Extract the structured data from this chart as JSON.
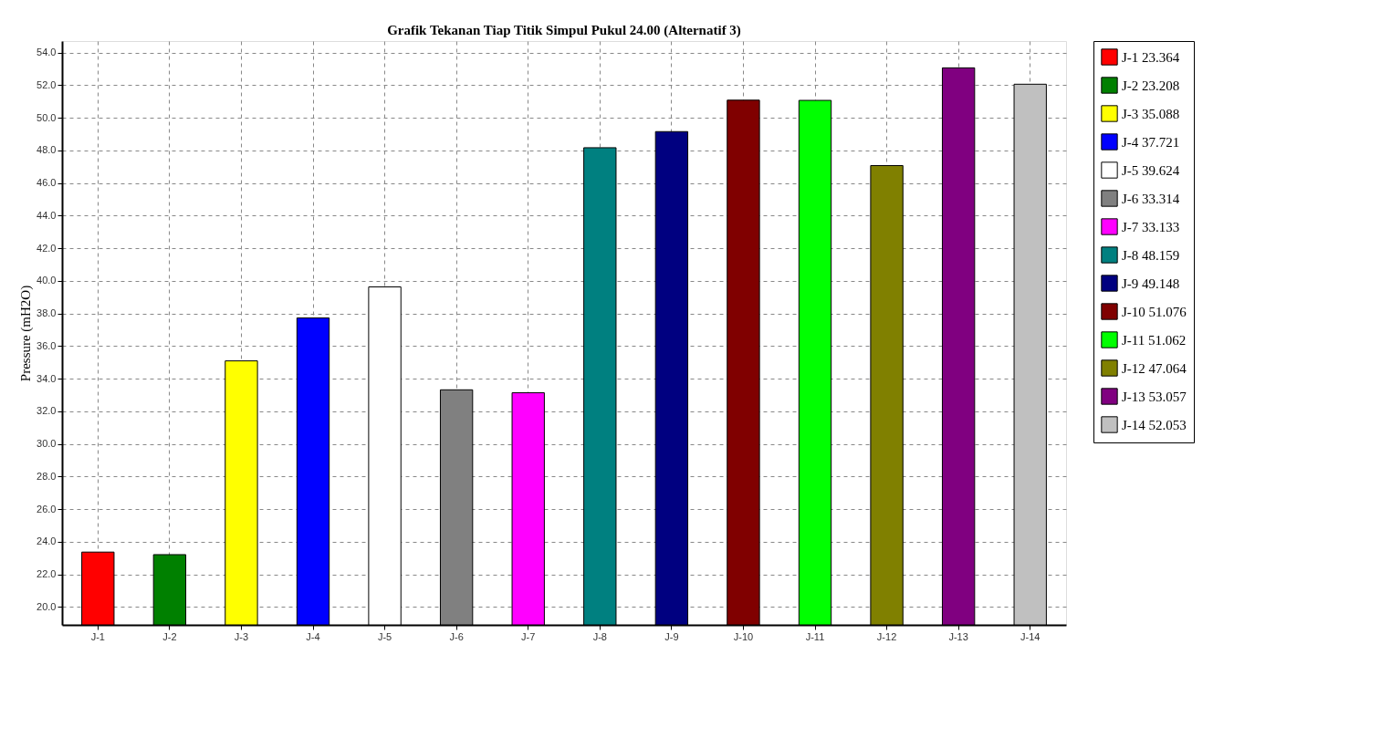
{
  "chart_data": {
    "type": "bar",
    "title": "Grafik Tekanan Tiap Titik Simpul Pukul 24.00 (Alternatif 3)",
    "ylabel": "Pressure (mH2O)",
    "categories": [
      "J-1",
      "J-2",
      "J-3",
      "J-4",
      "J-5",
      "J-6",
      "J-7",
      "J-8",
      "J-9",
      "J-10",
      "J-11",
      "J-12",
      "J-13",
      "J-14"
    ],
    "series": [
      {
        "name": "J-1 23.364",
        "color": "#ff0000",
        "values": [
          23.364,
          null,
          null,
          null,
          null,
          null,
          null,
          null,
          null,
          null,
          null,
          null,
          null,
          null
        ]
      },
      {
        "name": "J-2 23.208",
        "color": "#008000",
        "values": [
          null,
          23.208,
          null,
          null,
          null,
          null,
          null,
          null,
          null,
          null,
          null,
          null,
          null,
          null
        ]
      },
      {
        "name": "J-3 35.088",
        "color": "#ffff00",
        "values": [
          null,
          null,
          35.088,
          null,
          null,
          null,
          null,
          null,
          null,
          null,
          null,
          null,
          null,
          null
        ]
      },
      {
        "name": "J-4 37.721",
        "color": "#0000ff",
        "values": [
          null,
          null,
          null,
          37.721,
          null,
          null,
          null,
          null,
          null,
          null,
          null,
          null,
          null,
          null
        ]
      },
      {
        "name": "J-5 39.624",
        "color": "#ffffff",
        "values": [
          null,
          null,
          null,
          null,
          39.624,
          null,
          null,
          null,
          null,
          null,
          null,
          null,
          null,
          null
        ]
      },
      {
        "name": "J-6 33.314",
        "color": "#808080",
        "values": [
          null,
          null,
          null,
          null,
          null,
          33.314,
          null,
          null,
          null,
          null,
          null,
          null,
          null,
          null
        ]
      },
      {
        "name": "J-7 33.133",
        "color": "#ff00ff",
        "values": [
          null,
          null,
          null,
          null,
          null,
          null,
          33.133,
          null,
          null,
          null,
          null,
          null,
          null,
          null
        ]
      },
      {
        "name": "J-8 48.159",
        "color": "#008080",
        "values": [
          null,
          null,
          null,
          null,
          null,
          null,
          null,
          48.159,
          null,
          null,
          null,
          null,
          null,
          null
        ]
      },
      {
        "name": "J-9 49.148",
        "color": "#000080",
        "values": [
          null,
          null,
          null,
          null,
          null,
          null,
          null,
          null,
          49.148,
          null,
          null,
          null,
          null,
          null
        ]
      },
      {
        "name": "J-10 51.076",
        "color": "#800000",
        "values": [
          null,
          null,
          null,
          null,
          null,
          null,
          null,
          null,
          null,
          51.076,
          null,
          null,
          null,
          null
        ]
      },
      {
        "name": "J-11 51.062",
        "color": "#00ff00",
        "values": [
          null,
          null,
          null,
          null,
          null,
          null,
          null,
          null,
          null,
          null,
          51.062,
          null,
          null,
          null
        ]
      },
      {
        "name": "J-12 47.064",
        "color": "#808000",
        "values": [
          null,
          null,
          null,
          null,
          null,
          null,
          null,
          null,
          null,
          null,
          null,
          47.064,
          null,
          null
        ]
      },
      {
        "name": "J-13 53.057",
        "color": "#800080",
        "values": [
          null,
          null,
          null,
          null,
          null,
          null,
          null,
          null,
          null,
          null,
          null,
          null,
          53.057,
          null
        ]
      },
      {
        "name": "J-14 52.053",
        "color": "#c0c0c0",
        "values": [
          null,
          null,
          null,
          null,
          null,
          null,
          null,
          null,
          null,
          null,
          null,
          null,
          null,
          52.053
        ]
      }
    ],
    "ylim": [
      18.9,
      54.7
    ],
    "yticks": [
      {
        "value": 20,
        "label": "20.0"
      },
      {
        "value": 22,
        "label": "22.0"
      },
      {
        "value": 24,
        "label": "24.0"
      },
      {
        "value": 26,
        "label": "26.0"
      },
      {
        "value": 28,
        "label": "28.0"
      },
      {
        "value": 30,
        "label": "30.0"
      },
      {
        "value": 32,
        "label": "32.0"
      },
      {
        "value": 34,
        "label": "34.0"
      },
      {
        "value": 36,
        "label": "36.0"
      },
      {
        "value": 38,
        "label": "38.0"
      },
      {
        "value": 40,
        "label": "40.0"
      },
      {
        "value": 42,
        "label": "42.0"
      },
      {
        "value": 44,
        "label": "44.0"
      },
      {
        "value": 46,
        "label": "46.0"
      },
      {
        "value": 48,
        "label": "48.0"
      },
      {
        "value": 50,
        "label": "50.0"
      },
      {
        "value": 52,
        "label": "52.0"
      },
      {
        "value": 54,
        "label": "54.0"
      }
    ],
    "grid": true,
    "legend": "right"
  }
}
